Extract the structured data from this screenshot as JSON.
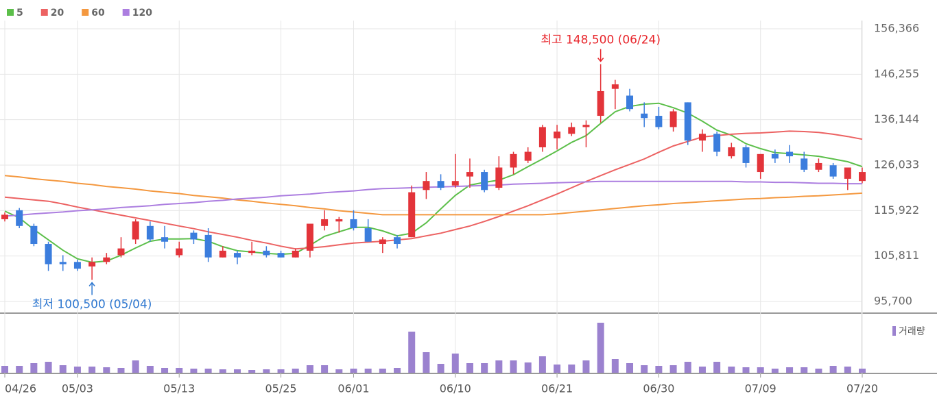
{
  "chart_data": {
    "type": "candlestick",
    "categories": [
      "04/26",
      null,
      null,
      null,
      null,
      "05/03",
      null,
      null,
      null,
      null,
      null,
      null,
      "05/13",
      null,
      null,
      null,
      null,
      null,
      null,
      "05/25",
      null,
      null,
      null,
      null,
      "06/01",
      null,
      null,
      null,
      null,
      null,
      null,
      "06/10",
      null,
      null,
      null,
      null,
      null,
      null,
      "06/21",
      null,
      null,
      null,
      null,
      null,
      null,
      "06/30",
      null,
      null,
      null,
      null,
      null,
      null,
      "07/09",
      null,
      null,
      null,
      null,
      null,
      null,
      "07/20"
    ],
    "open": [
      114000,
      116000,
      112500,
      108500,
      104500,
      104500,
      103500,
      104500,
      106000,
      109500,
      112500,
      110000,
      106000,
      111000,
      110500,
      105500,
      106500,
      106500,
      107000,
      106500,
      105500,
      107000,
      112500,
      113500,
      114000,
      112000,
      108500,
      110000,
      110000,
      120500,
      122500,
      121500,
      123500,
      124500,
      121000,
      125500,
      127000,
      130000,
      132000,
      133000,
      134500,
      137000,
      143000,
      141500,
      137500,
      137000,
      134500,
      140000,
      131500,
      133000,
      128000,
      130000,
      124500,
      128500,
      129000,
      127500,
      125000,
      126000,
      123000,
      122500
    ],
    "high": [
      115500,
      116500,
      113000,
      109000,
      106000,
      105000,
      105500,
      106500,
      110000,
      114000,
      113500,
      112500,
      109000,
      111500,
      112000,
      108000,
      107000,
      109000,
      108000,
      107000,
      107500,
      113000,
      116000,
      114500,
      116000,
      114000,
      110000,
      110500,
      121500,
      124500,
      124000,
      128500,
      127500,
      125000,
      128000,
      129000,
      130000,
      135000,
      135000,
      135500,
      136000,
      148500,
      145000,
      143000,
      140000,
      139000,
      138500,
      140000,
      134000,
      133500,
      131000,
      130500,
      128500,
      129500,
      130500,
      129000,
      127500,
      126500,
      125500,
      125500
    ],
    "low": [
      113500,
      112000,
      108000,
      102500,
      102500,
      102500,
      100500,
      104000,
      105500,
      108500,
      109000,
      107500,
      105500,
      108500,
      104500,
      105500,
      104000,
      106000,
      105500,
      105500,
      105500,
      105500,
      111500,
      111000,
      111500,
      109000,
      106500,
      107500,
      110000,
      118500,
      120500,
      121000,
      121000,
      120000,
      120500,
      124000,
      126500,
      129000,
      129500,
      132500,
      130000,
      135500,
      138500,
      138000,
      134500,
      134000,
      133500,
      130500,
      129000,
      128000,
      127500,
      125500,
      123000,
      126500,
      126500,
      124500,
      124500,
      123000,
      120500,
      122000
    ],
    "close": [
      115000,
      112500,
      108500,
      104000,
      104000,
      103000,
      104500,
      105500,
      107500,
      113500,
      109500,
      109000,
      107500,
      109500,
      105500,
      107000,
      105500,
      107000,
      106000,
      105500,
      107000,
      113000,
      114000,
      114000,
      112000,
      109000,
      109500,
      108500,
      120000,
      122500,
      121000,
      122500,
      124500,
      120500,
      125500,
      128500,
      129000,
      134500,
      133500,
      134500,
      135000,
      142500,
      144000,
      138500,
      136500,
      134500,
      138000,
      131500,
      133000,
      129000,
      130000,
      126500,
      128500,
      127500,
      128000,
      125000,
      126500,
      123500,
      125500,
      124500
    ],
    "up_color": "#e3343a",
    "down_color": "#3b7ddd",
    "ylim": [
      95700,
      156366
    ],
    "yticks": [
      {
        "value": 95700,
        "label": "95,700"
      },
      {
        "value": 105811,
        "label": "105,811"
      },
      {
        "value": 115922,
        "label": "115,922"
      },
      {
        "value": 126033,
        "label": "126,033"
      },
      {
        "value": 136144,
        "label": "136,144"
      },
      {
        "value": 146255,
        "label": "146,255"
      },
      {
        "value": 156366,
        "label": "156,366"
      }
    ],
    "grid": true,
    "moving_averages": [
      {
        "name": "5",
        "color": "#5cbf4a",
        "values": [
          115800,
          114300,
          111700,
          109400,
          107100,
          105200,
          104400,
          104700,
          106000,
          107600,
          109100,
          109600,
          109600,
          109700,
          109100,
          107900,
          107000,
          106700,
          106400,
          106200,
          106400,
          108200,
          110200,
          111200,
          112200,
          112200,
          111400,
          110300,
          110900,
          113200,
          116300,
          119300,
          121600,
          122200,
          122700,
          123900,
          125700,
          127400,
          129200,
          131100,
          132600,
          135300,
          137900,
          139100,
          139600,
          139800,
          138800,
          137600,
          135800,
          133800,
          132700,
          130800,
          129700,
          128800,
          128600,
          128300,
          128000,
          127400,
          126800,
          125700
        ]
      },
      {
        "name": "20",
        "color": "#ec6262",
        "values": [
          118900,
          118600,
          118300,
          118000,
          117400,
          116700,
          116100,
          115500,
          114900,
          114300,
          113700,
          113100,
          112500,
          111900,
          111200,
          110600,
          110000,
          109300,
          108700,
          108000,
          107400,
          107600,
          107900,
          108300,
          108700,
          108900,
          109100,
          109400,
          109700,
          110300,
          110900,
          111700,
          112500,
          113500,
          114600,
          115800,
          117000,
          118300,
          119600,
          121000,
          122400,
          123700,
          125000,
          126200,
          127400,
          128900,
          130300,
          131300,
          132300,
          132600,
          132900,
          133100,
          133200,
          133400,
          133600,
          133500,
          133300,
          132900,
          132400,
          131800
        ]
      },
      {
        "name": "60",
        "color": "#f4983f",
        "values": [
          123700,
          123400,
          123000,
          122700,
          122400,
          122000,
          121700,
          121300,
          121000,
          120700,
          120300,
          120000,
          119700,
          119300,
          119000,
          118700,
          118300,
          118000,
          117600,
          117300,
          117000,
          116600,
          116300,
          115900,
          115600,
          115300,
          115000,
          115000,
          115000,
          115000,
          115000,
          115000,
          115000,
          115000,
          115000,
          115000,
          115000,
          115000,
          115200,
          115500,
          115800,
          116100,
          116400,
          116700,
          117000,
          117200,
          117500,
          117700,
          117900,
          118100,
          118300,
          118500,
          118600,
          118800,
          118900,
          119100,
          119200,
          119400,
          119600,
          119800
        ]
      },
      {
        "name": "120",
        "color": "#ac7ee0",
        "values": [
          114700,
          114900,
          115200,
          115400,
          115600,
          115900,
          116100,
          116300,
          116600,
          116800,
          117000,
          117300,
          117500,
          117700,
          118000,
          118200,
          118500,
          118700,
          118900,
          119200,
          119400,
          119600,
          119900,
          120100,
          120300,
          120600,
          120800,
          120900,
          121000,
          121100,
          121200,
          121300,
          121400,
          121500,
          121600,
          121800,
          121900,
          122000,
          122100,
          122200,
          122300,
          122400,
          122400,
          122400,
          122400,
          122400,
          122400,
          122400,
          122400,
          122400,
          122400,
          122300,
          122300,
          122200,
          122200,
          122100,
          122000,
          122000,
          121900,
          121900
        ]
      }
    ],
    "annotations": [
      {
        "text": "최고 148,500 (06/24)",
        "value": 148500,
        "kind": "high",
        "color": "#e8262c"
      },
      {
        "text": "최저 100,500 (05/04)",
        "value": 100500,
        "kind": "low",
        "color": "#2f78d0"
      }
    ],
    "volume": {
      "name": "거래량",
      "color": "#9b82cf",
      "ylim": [
        0,
        80
      ],
      "values": [
        10,
        10,
        14,
        16,
        11,
        9,
        9,
        8,
        7,
        18,
        10,
        7,
        7,
        6,
        6,
        5,
        5,
        4,
        5,
        5,
        6,
        11,
        11,
        5,
        6,
        6,
        6,
        7,
        60,
        30,
        13,
        28,
        14,
        14,
        18,
        18,
        15,
        24,
        12,
        12,
        18,
        73,
        20,
        14,
        11,
        10,
        11,
        16,
        9,
        16,
        9,
        8,
        8,
        6,
        8,
        8,
        6,
        10,
        9,
        6
      ]
    }
  }
}
